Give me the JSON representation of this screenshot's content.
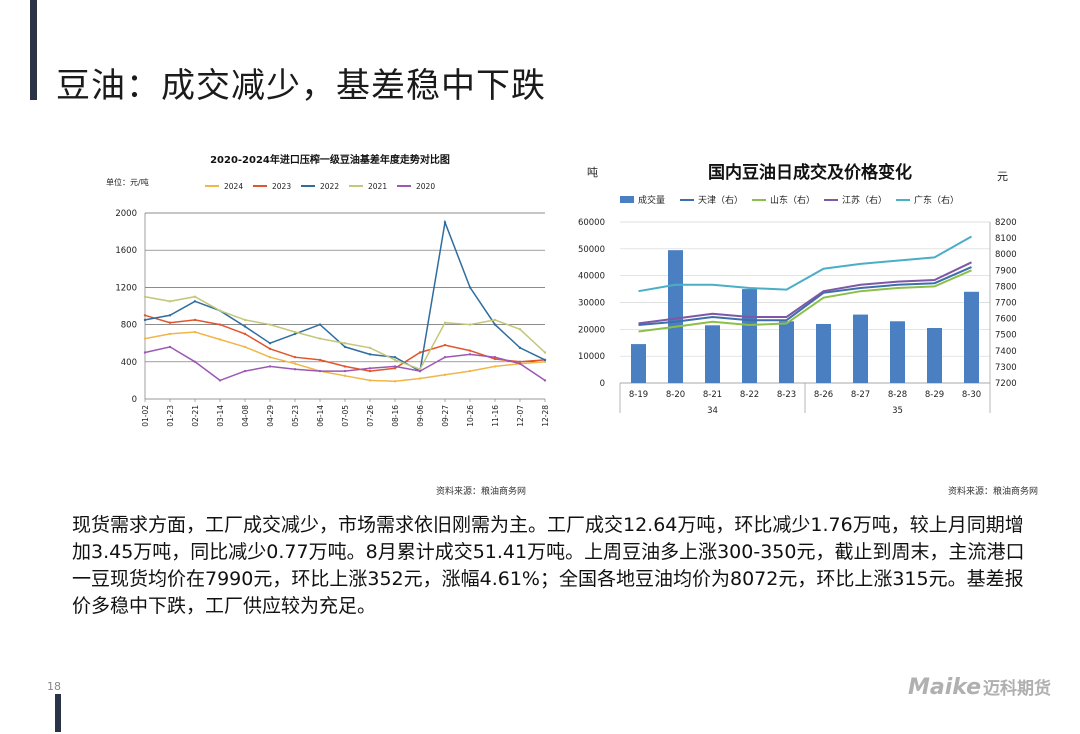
{
  "slide": {
    "title": "豆油：成交减少，基差稳中下跌",
    "page_number": "18",
    "logo_en": "Maike",
    "logo_cn": "迈科期货",
    "body": "现货需求方面，工厂成交减少，市场需求依旧刚需为主。工厂成交12.64万吨，环比减少1.76万吨，较上月同期增加3.45万吨，同比减少0.77万吨。8月累计成交51.41万吨。上周豆油多上涨300-350元，截止到周末，主流港口一豆现货均价在7990元，环比上涨352元，涨幅4.61%；全国各地豆油均价为8072元，环比上涨315元。基差报价多稳中下跌，工厂供应较为充足。",
    "source1": "资料来源：粮油商务网",
    "source2": "资料来源：粮油商务网"
  },
  "chart_data": [
    {
      "type": "line",
      "title": "2020-2024年进口压榨一级豆油基差年度走势对比图",
      "unit_label": "单位：元/吨",
      "ylim": [
        0,
        2000
      ],
      "yticks": [
        0,
        400,
        800,
        1200,
        1600,
        2000
      ],
      "x_ticks": [
        "01-02",
        "01-23",
        "02-21",
        "03-14",
        "04-08",
        "04-29",
        "05-23",
        "06-14",
        "07-05",
        "07-26",
        "08-16",
        "09-06",
        "09-27",
        "10-26",
        "11-16",
        "12-07",
        "12-28"
      ],
      "grid": "horizontal",
      "legend_position": "top",
      "series": [
        {
          "name": "2024",
          "color": "#f0b64a",
          "values": [
            650,
            700,
            720,
            640,
            560,
            450,
            380,
            300,
            250,
            200,
            190,
            220,
            260,
            300,
            350,
            380,
            400
          ]
        },
        {
          "name": "2023",
          "color": "#e0562c",
          "values": [
            900,
            820,
            850,
            800,
            700,
            540,
            450,
            420,
            350,
            300,
            330,
            500,
            580,
            520,
            430,
            400,
            420
          ]
        },
        {
          "name": "2022",
          "color": "#2f6d9e",
          "values": [
            850,
            900,
            1050,
            950,
            780,
            600,
            700,
            800,
            560,
            480,
            450,
            300,
            1900,
            1200,
            800,
            550,
            420
          ]
        },
        {
          "name": "2021",
          "color": "#c3c77a",
          "values": [
            1100,
            1050,
            1100,
            950,
            850,
            800,
            720,
            650,
            600,
            550,
            420,
            320,
            820,
            800,
            850,
            750,
            500
          ]
        },
        {
          "name": "2020",
          "color": "#9b58b5",
          "values": [
            500,
            560,
            400,
            200,
            300,
            350,
            320,
            300,
            300,
            330,
            350,
            300,
            450,
            480,
            450,
            380,
            200
          ]
        }
      ]
    },
    {
      "type": "bar",
      "title": "国内豆油日成交及价格变化",
      "left_unit": "吨",
      "right_unit": "元",
      "categories": [
        "8-19",
        "8-20",
        "8-21",
        "8-22",
        "8-23",
        "8-26",
        "8-27",
        "8-28",
        "8-29",
        "8-30"
      ],
      "week_labels": [
        "34",
        "35"
      ],
      "ylim_left": [
        0,
        60000
      ],
      "yticks_left": [
        0,
        10000,
        20000,
        30000,
        40000,
        50000,
        60000
      ],
      "ylim_right": [
        7200,
        8200
      ],
      "yticks_right": [
        7200,
        7300,
        7400,
        7500,
        7600,
        7700,
        7800,
        7900,
        8000,
        8100,
        8200
      ],
      "legend_position": "top",
      "bar_series": {
        "name": "成交量",
        "color": "#4a7fc1",
        "values": [
          14500,
          49500,
          21500,
          35000,
          23000,
          22000,
          25500,
          23000,
          20500,
          34000
        ]
      },
      "line_series": [
        {
          "name": "天津（右）",
          "color": "#3f6fa8",
          "values": [
            7560,
            7580,
            7610,
            7590,
            7590,
            7760,
            7790,
            7810,
            7820,
            7920
          ]
        },
        {
          "name": "山东（右）",
          "color": "#8cbf4a",
          "values": [
            7520,
            7550,
            7580,
            7560,
            7570,
            7730,
            7770,
            7790,
            7800,
            7900
          ]
        },
        {
          "name": "江苏（右）",
          "color": "#7e57a6",
          "values": [
            7570,
            7600,
            7630,
            7610,
            7610,
            7770,
            7810,
            7830,
            7840,
            7950
          ]
        },
        {
          "name": "广东（右）",
          "color": "#4aaec6",
          "values": [
            7770,
            7810,
            7810,
            7790,
            7780,
            7910,
            7940,
            7960,
            7980,
            8110
          ]
        }
      ]
    }
  ]
}
